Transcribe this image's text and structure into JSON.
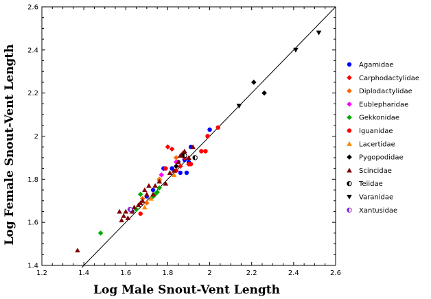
{
  "chart_data": {
    "type": "scatter",
    "title": "",
    "xlabel": "Log Male Snout-Vent Length",
    "ylabel": "Log Female Snout-Vent Length",
    "xlim": [
      1.2,
      2.6
    ],
    "ylim": [
      1.4,
      2.6
    ],
    "xticks": [
      1.2,
      1.4,
      1.6,
      1.8,
      2.0,
      2.2,
      2.4,
      2.6
    ],
    "yticks": [
      1.4,
      1.6,
      1.8,
      2.0,
      2.2,
      2.4,
      2.6
    ],
    "x_tick_labels": [
      "1.2",
      "1.4",
      "1.6",
      "1.8",
      "2",
      "2.2",
      "2.4",
      "2.6"
    ],
    "y_tick_labels": [
      "1.4",
      "1.6",
      "1.8",
      "2",
      "2.2",
      "2.4",
      "2.6"
    ],
    "grid": false,
    "legend_position": "right",
    "reference_line": [
      [
        1.39,
        1.39
      ],
      [
        2.6,
        2.6
      ]
    ],
    "series": [
      {
        "name": "Agamidae",
        "marker": "circle",
        "color": "#0000ff",
        "points": [
          [
            1.63,
            1.65
          ],
          [
            1.7,
            1.72
          ],
          [
            1.73,
            1.75
          ],
          [
            1.78,
            1.85
          ],
          [
            1.82,
            1.85
          ],
          [
            1.85,
            1.88
          ],
          [
            1.86,
            1.83
          ],
          [
            1.88,
            1.89
          ],
          [
            1.89,
            1.83
          ],
          [
            1.9,
            1.88
          ],
          [
            1.91,
            1.95
          ],
          [
            2.0,
            2.03
          ]
        ]
      },
      {
        "name": "Carphodactylidae",
        "marker": "diamond",
        "color": "#ff0000",
        "points": [
          [
            1.8,
            1.95
          ],
          [
            1.82,
            1.94
          ],
          [
            1.88,
            1.9
          ],
          [
            1.9,
            1.87
          ],
          [
            1.86,
            1.86
          ]
        ]
      },
      {
        "name": "Diplodactylidae",
        "marker": "diamond",
        "color": "#ff6600",
        "points": [
          [
            1.68,
            1.71
          ],
          [
            1.7,
            1.69
          ],
          [
            1.76,
            1.8
          ],
          [
            1.84,
            1.9
          ],
          [
            1.87,
            1.91
          ]
        ]
      },
      {
        "name": "Eublepharidae",
        "marker": "diamond",
        "color": "#ff00ff",
        "points": [
          [
            1.77,
            1.82
          ],
          [
            1.84,
            1.88
          ]
        ]
      },
      {
        "name": "Gekkonidae",
        "marker": "diamond",
        "color": "#00aa00",
        "points": [
          [
            1.48,
            1.55
          ],
          [
            1.65,
            1.66
          ],
          [
            1.67,
            1.73
          ],
          [
            1.73,
            1.72
          ],
          [
            1.74,
            1.73
          ],
          [
            1.75,
            1.74
          ],
          [
            1.76,
            1.76
          ]
        ]
      },
      {
        "name": "Iguanidae",
        "marker": "circle",
        "color": "#ff0000",
        "points": [
          [
            1.67,
            1.64
          ],
          [
            1.79,
            1.85
          ],
          [
            1.84,
            1.84
          ],
          [
            1.91,
            1.87
          ],
          [
            1.96,
            1.93
          ],
          [
            1.98,
            1.93
          ],
          [
            1.99,
            2.0
          ],
          [
            2.04,
            2.04
          ]
        ]
      },
      {
        "name": "Lacertidae",
        "marker": "triangle",
        "color": "#ff8800",
        "points": [
          [
            1.69,
            1.67
          ],
          [
            1.72,
            1.71
          ],
          [
            1.76,
            1.8
          ],
          [
            1.83,
            1.82
          ]
        ]
      },
      {
        "name": "Pygopodidae",
        "marker": "diamond",
        "color": "#000000",
        "points": [
          [
            2.21,
            2.25
          ],
          [
            2.26,
            2.2
          ],
          [
            1.84,
            1.86
          ]
        ]
      },
      {
        "name": "Scincidae",
        "marker": "triangle",
        "color": "#800000",
        "points": [
          [
            1.37,
            1.47
          ],
          [
            1.57,
            1.65
          ],
          [
            1.58,
            1.61
          ],
          [
            1.59,
            1.63
          ],
          [
            1.6,
            1.65
          ],
          [
            1.61,
            1.62
          ],
          [
            1.63,
            1.65
          ],
          [
            1.64,
            1.67
          ],
          [
            1.66,
            1.68
          ],
          [
            1.67,
            1.69
          ],
          [
            1.68,
            1.7
          ],
          [
            1.69,
            1.75
          ],
          [
            1.7,
            1.73
          ],
          [
            1.71,
            1.77
          ],
          [
            1.73,
            1.73
          ],
          [
            1.74,
            1.77
          ],
          [
            1.76,
            1.79
          ],
          [
            1.79,
            1.78
          ],
          [
            1.81,
            1.83
          ],
          [
            1.83,
            1.84
          ],
          [
            1.85,
            1.88
          ],
          [
            1.86,
            1.91
          ],
          [
            1.87,
            1.92
          ],
          [
            1.88,
            1.93
          ],
          [
            1.9,
            1.9
          ],
          [
            1.92,
            1.95
          ]
        ]
      },
      {
        "name": "Teiidae",
        "marker": "half-circle",
        "color": "#000000",
        "points": [
          [
            1.93,
            1.9
          ],
          [
            1.88,
            1.91
          ]
        ]
      },
      {
        "name": "Varanidae",
        "marker": "triangle-down",
        "color": "#000000",
        "points": [
          [
            2.14,
            2.14
          ],
          [
            2.41,
            2.4
          ],
          [
            2.52,
            2.48
          ]
        ]
      },
      {
        "name": "Xantusidae",
        "marker": "half-circle",
        "color": "#8a2be2",
        "points": [
          [
            1.62,
            1.66
          ]
        ]
      }
    ]
  }
}
